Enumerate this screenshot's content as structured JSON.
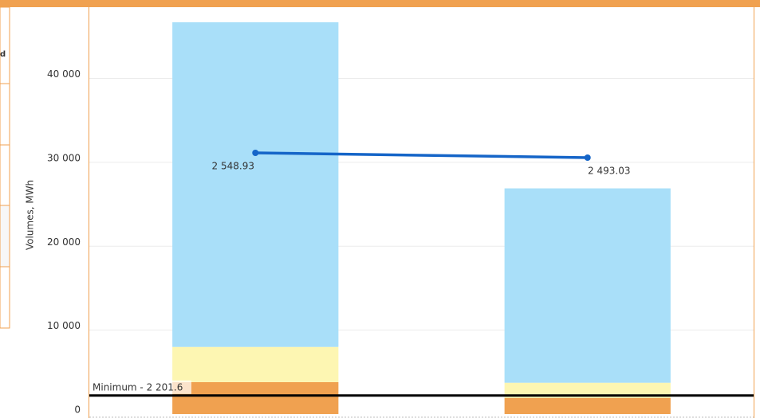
{
  "side_panel": {
    "text": "d"
  },
  "chart_data": {
    "type": "bar",
    "y_label": "Volumes, MWh",
    "categories": [
      null,
      null
    ],
    "stacked": true,
    "series": [
      {
        "color": "#f0a150",
        "values": [
          3800,
          1900
        ]
      },
      {
        "color": "#fdf6b2",
        "values": [
          4200,
          1830
        ]
      },
      {
        "color": "#a9dff9",
        "values": [
          38700,
          23170
        ]
      },
      {
        "type": "line",
        "axis": "y2",
        "color": "#1565c8",
        "values": [
          2548.93,
          2493.03
        ],
        "value_labels": [
          "2 548.93",
          "2 493.03"
        ]
      }
    ],
    "reference_line": {
      "value": 2201.6,
      "label": "Minimum - 2 201.6",
      "color": "#000000"
    },
    "ylim": [
      0,
      48500
    ],
    "yticks": [
      0,
      {
        "value": 10000,
        "label": "10 000"
      },
      {
        "value": 20000,
        "label": "20 000"
      },
      {
        "value": 30000,
        "label": "30 000"
      },
      {
        "value": 40000,
        "label": "40 000"
      }
    ],
    "y2lim": [
      -500,
      4250
    ],
    "grid": true
  }
}
